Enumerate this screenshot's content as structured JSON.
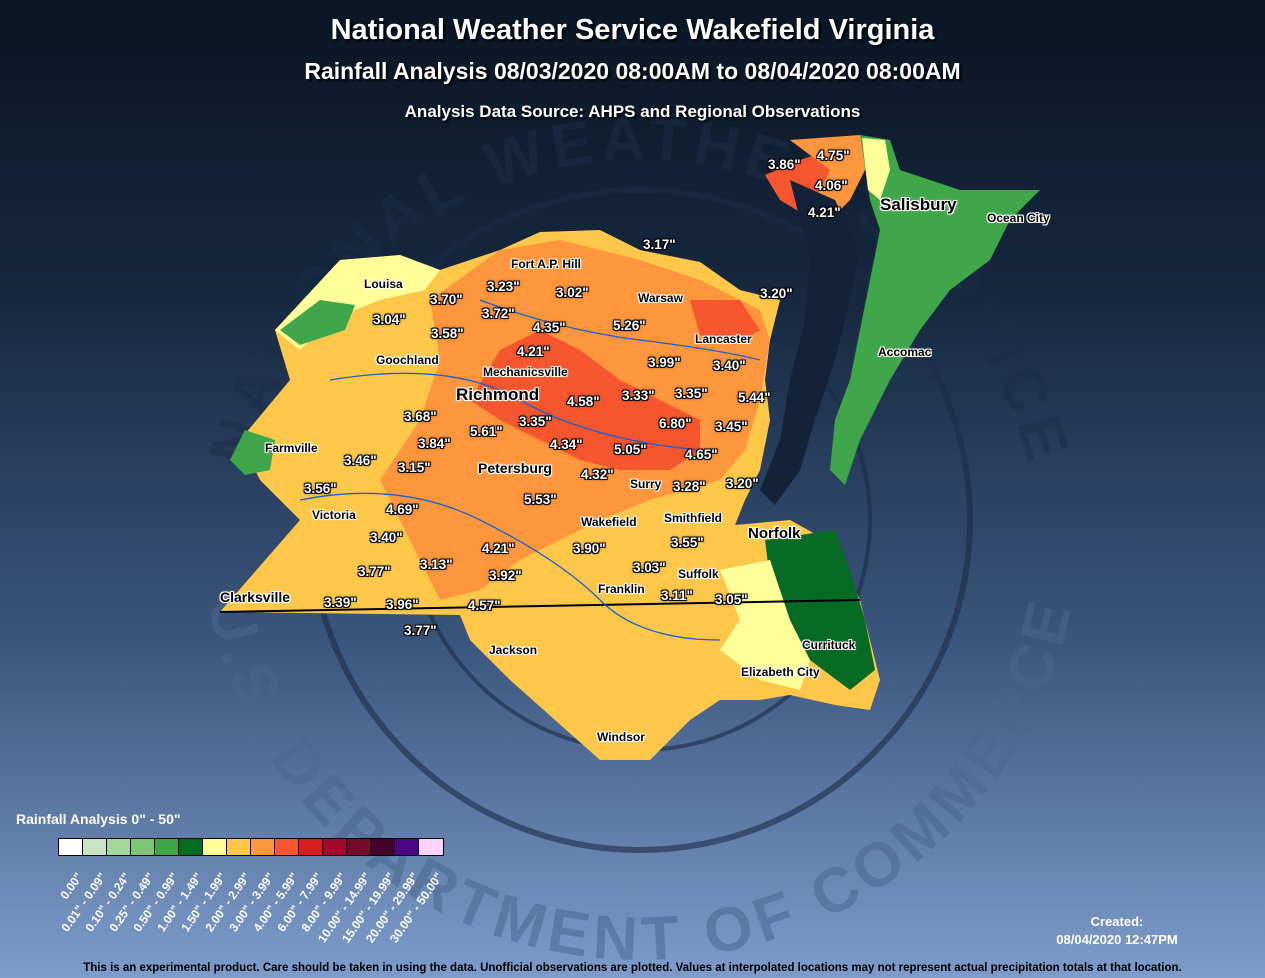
{
  "header": {
    "title": "National Weather Service Wakefield Virginia",
    "subtitle": "Rainfall Analysis 08/03/2020 08:00AM to 08/04/2020 08:00AM",
    "source": "Analysis Data Source: AHPS and Regional Observations"
  },
  "watermark": {
    "top": "NATIONAL WEATHER SERVICE",
    "bottom": "U.S. DEPARTMENT OF COMMERCE"
  },
  "cities": [
    "Salisbury",
    "Richmond",
    "Norfolk",
    "Clarksville",
    "Petersburg"
  ],
  "towns": [
    "Ocean City",
    "Louisa",
    "Fort A.P. Hill",
    "Warsaw",
    "Lancaster",
    "Goochland",
    "Mechanicsville",
    "Accomac",
    "Farmville",
    "Surry",
    "Victoria",
    "Wakefield",
    "Smithfield",
    "Suffolk",
    "Franklin",
    "Jackson",
    "Currituck",
    "Elizabeth City",
    "Windsor"
  ],
  "rainfall": [
    "3.86\"",
    "4.75\"",
    "4.06\"",
    "4.21\"",
    "3.17\"",
    "3.20\"",
    "3.23\"",
    "3.02\"",
    "3.70\"",
    "3.72\"",
    "3.04\"",
    "3.58\"",
    "4.35\"",
    "5.26\"",
    "4.21\"",
    "3.99\"",
    "3.40\"",
    "3.33\"",
    "3.35\"",
    "5.44\"",
    "4.58\"",
    "3.68\"",
    "3.35\"",
    "5.61\"",
    "6.80\"",
    "3.45\"",
    "3.84\"",
    "4.34\"",
    "3.46\"",
    "3.15\"",
    "5.05\"",
    "4.65\"",
    "4.32\"",
    "3.28\"",
    "3.20\"",
    "3.56\"",
    "5.53\"",
    "4.69\"",
    "3.40\"",
    "3.13\"",
    "4.21\"",
    "3.90\"",
    "3.55\"",
    "3.77\"",
    "3.03\"",
    "3.92\"",
    "3.11\"",
    "3.05\"",
    "3.39\"",
    "3.96\"",
    "4.57\"",
    "3.77\""
  ],
  "legend": {
    "title": "Rainfall Analysis 0\" - 50\"",
    "colors": [
      "#ffffff",
      "#c8e6c3",
      "#a3d69b",
      "#7fc477",
      "#3fa74a",
      "#046a24",
      "#ffff99",
      "#fdc84a",
      "#fd963c",
      "#f5562d",
      "#d81f1f",
      "#a5062b",
      "#760a2c",
      "#42022b",
      "#4c0587",
      "#fdd3fb"
    ],
    "ranges": [
      "0.00\"",
      "0.01\" - 0.09\"",
      "0.10\" - 0.24\"",
      "0.25\" - 0.49\"",
      "0.50\" - 0.99\"",
      "1.00\" - 1.49\"",
      "1.50\" - 1.99\"",
      "2.00\" - 2.99\"",
      "3.00\" - 3.99\"",
      "4.00\" - 5.99\"",
      "6.00\" - 7.99\"",
      "8.00\" - 9.99\"",
      "10.00\" - 14.99\"",
      "15.00\" - 19.99\"",
      "20.00\" - 29.99\"",
      "30.00\" - 50.00\""
    ]
  },
  "created": {
    "label": "Created:",
    "timestamp": "08/04/2020 12:47PM"
  },
  "disclaimer": "This is an experimental product. Care should be taken in using the data. Unofficial observations are plotted. Values at interpolated locations may not represent actual precipitation totals at that location."
}
